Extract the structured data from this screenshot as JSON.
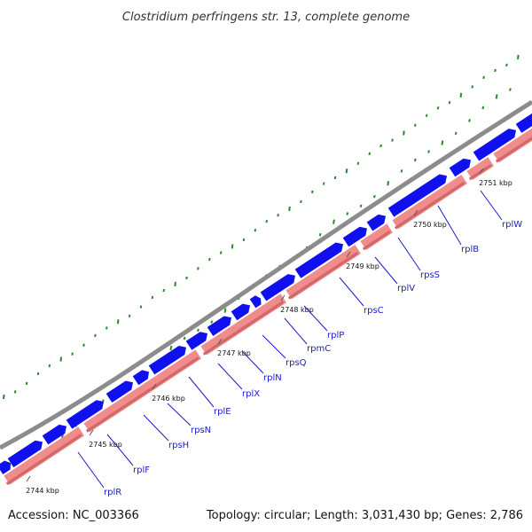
{
  "title": "Clostridium perfringens str. 13, complete genome",
  "accession": "Accession: NC_003366",
  "summary": "Topology: circular; Length: 3,031,430 bp; Genes: 2,786",
  "colors": {
    "backbone": "#8c8c8c",
    "forward_genes": "#1010ee",
    "reverse_genes": "#f08c8c",
    "gc_skew": "#2a8a2a",
    "labels": "#1a1acc"
  },
  "ticks": [
    "2744 kbp",
    "2745 kbp",
    "2746 kbp",
    "2747 kbp",
    "2748 kbp",
    "2749 kbp",
    "2750 kbp",
    "2751 kbp"
  ],
  "genes": [
    "rplR",
    "rplF",
    "rpsH",
    "rpsN",
    "rplE",
    "rplX",
    "rplN",
    "rpsQ",
    "rpmC",
    "rplP",
    "rpsC",
    "rplV",
    "rpsS",
    "rplB",
    "rplW"
  ]
}
